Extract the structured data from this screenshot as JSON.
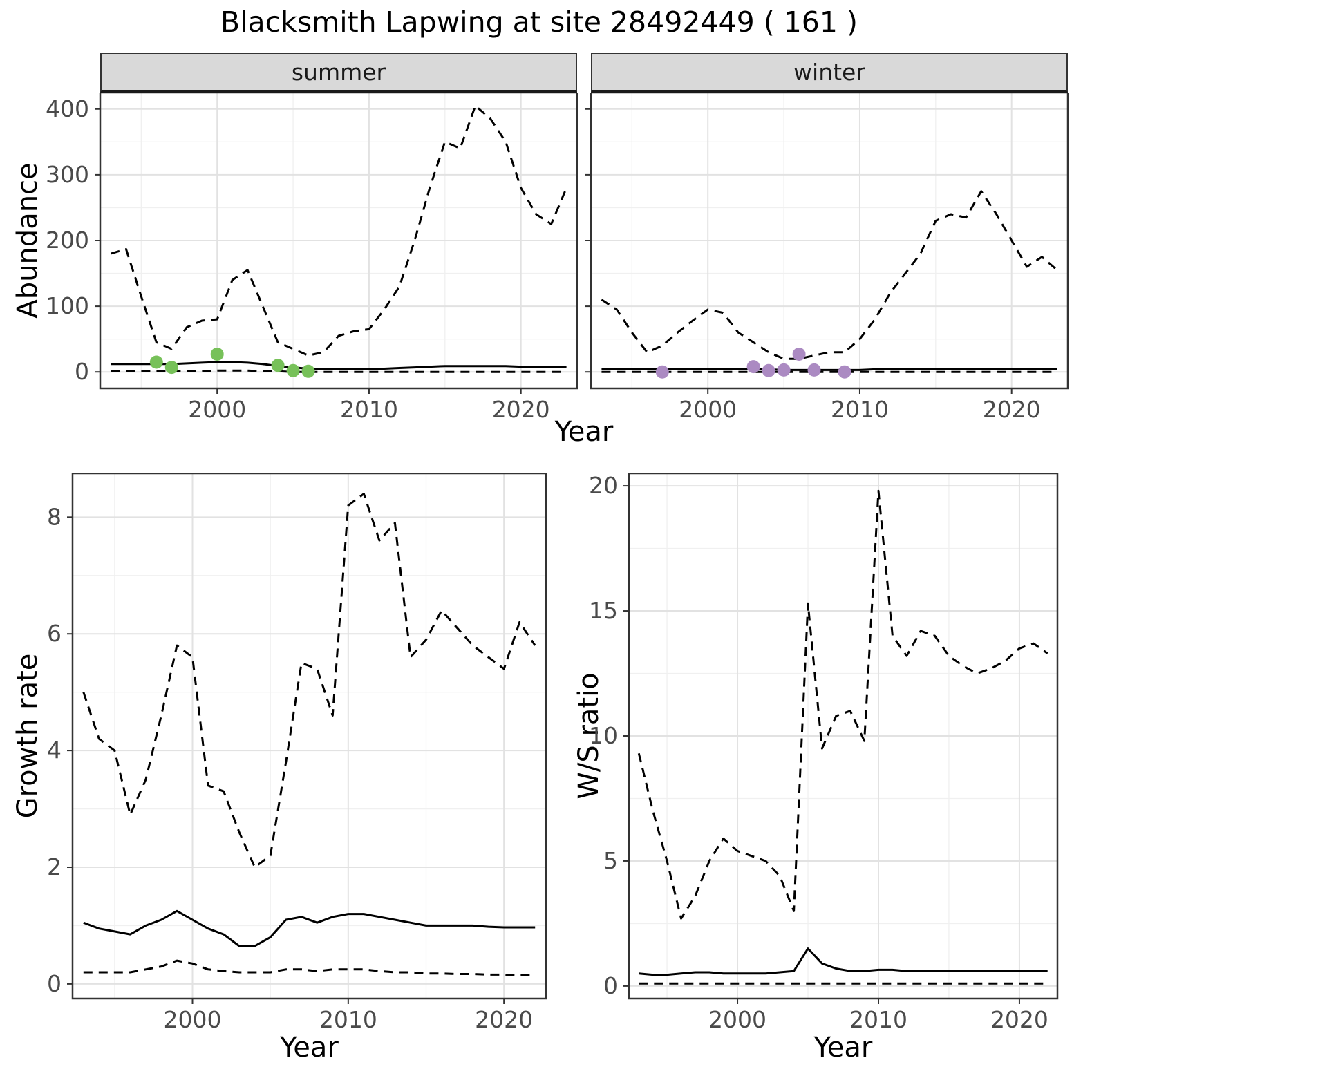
{
  "title": "Blacksmith Lapwing at site 28492449 ( 161 )",
  "top_row": {
    "ylabel": "Abundance",
    "xlabel": "Year",
    "facets": [
      "summer",
      "winter"
    ]
  },
  "bottom_left": {
    "ylabel": "Growth rate",
    "xlabel": "Year"
  },
  "bottom_right": {
    "ylabel": "W/S ratio",
    "xlabel": "Year"
  },
  "colors": {
    "summer_points": "#77c159",
    "winter_points": "#ab8ac2",
    "line": "#000000",
    "grid_major": "#e2e2e2",
    "grid_minor": "#f0f0f0",
    "panel_border": "#333333",
    "strip_bg": "#d9d9d9",
    "tick_text": "#4a4a4a",
    "tick_mark": "#333333"
  },
  "chart_data": [
    {
      "id": "abundance-summer",
      "type": "line",
      "facet": "summer",
      "xlabel": "Year",
      "ylabel": "Abundance",
      "xlim": [
        1992.3,
        2023.7
      ],
      "ylim": [
        -25,
        425
      ],
      "xticks": [
        2000,
        2010,
        2020
      ],
      "yticks": [
        0,
        100,
        200,
        300,
        400
      ],
      "grid": true,
      "legend": "none",
      "x": [
        1993,
        1994,
        1995,
        1996,
        1997,
        1998,
        1999,
        2000,
        2001,
        2002,
        2003,
        2004,
        2005,
        2006,
        2007,
        2008,
        2009,
        2010,
        2011,
        2012,
        2013,
        2014,
        2015,
        2016,
        2017,
        2018,
        2019,
        2020,
        2021,
        2022,
        2023
      ],
      "series": [
        {
          "name": "upper-ci",
          "linetype": "dashed",
          "values": [
            180,
            187,
            115,
            45,
            35,
            68,
            78,
            80,
            140,
            155,
            100,
            45,
            35,
            25,
            30,
            55,
            62,
            65,
            95,
            130,
            200,
            280,
            350,
            340,
            405,
            385,
            350,
            280,
            240,
            225,
            280
          ]
        },
        {
          "name": "median",
          "linetype": "solid",
          "values": [
            12,
            12,
            12,
            12,
            12,
            13,
            14,
            15,
            15,
            14,
            12,
            9,
            7,
            5,
            4,
            4,
            4,
            5,
            5,
            6,
            7,
            8,
            9,
            9,
            9,
            9,
            9,
            8,
            8,
            8,
            8
          ]
        },
        {
          "name": "lower-ci",
          "linetype": "dashed",
          "values": [
            1,
            1,
            1,
            1,
            1,
            1,
            1,
            2,
            2,
            2,
            1,
            1,
            0,
            0,
            0,
            0,
            0,
            0,
            0,
            0,
            0,
            0,
            0,
            0,
            0,
            0,
            0,
            0,
            0,
            0,
            0
          ]
        }
      ],
      "points": {
        "name": "summer-observations",
        "color": "#77c159",
        "x": [
          1996,
          1997,
          2000,
          2004,
          2005,
          2006
        ],
        "y": [
          15,
          7,
          27,
          10,
          2,
          1
        ]
      }
    },
    {
      "id": "abundance-winter",
      "type": "line",
      "facet": "winter",
      "xlabel": "Year",
      "ylabel": "Abundance",
      "xlim": [
        1992.3,
        2023.7
      ],
      "ylim": [
        -25,
        425
      ],
      "xticks": [
        2000,
        2010,
        2020
      ],
      "yticks": [
        0,
        100,
        200,
        300,
        400
      ],
      "grid": true,
      "legend": "none",
      "x": [
        1993,
        1994,
        1995,
        1996,
        1997,
        1998,
        1999,
        2000,
        2001,
        2002,
        2003,
        2004,
        2005,
        2006,
        2007,
        2008,
        2009,
        2010,
        2011,
        2012,
        2013,
        2014,
        2015,
        2016,
        2017,
        2018,
        2019,
        2020,
        2021,
        2022,
        2023
      ],
      "series": [
        {
          "name": "upper-ci",
          "linetype": "dashed",
          "values": [
            110,
            95,
            60,
            30,
            40,
            60,
            78,
            95,
            90,
            60,
            45,
            30,
            20,
            20,
            25,
            30,
            30,
            50,
            80,
            120,
            150,
            180,
            230,
            240,
            235,
            275,
            240,
            200,
            160,
            175,
            155
          ]
        },
        {
          "name": "median",
          "linetype": "solid",
          "values": [
            4,
            4,
            4,
            4,
            4,
            5,
            5,
            5,
            5,
            4,
            4,
            4,
            3,
            3,
            3,
            3,
            3,
            3,
            4,
            4,
            4,
            4,
            5,
            5,
            5,
            5,
            5,
            4,
            4,
            4,
            4
          ]
        },
        {
          "name": "lower-ci",
          "linetype": "dashed",
          "values": [
            0,
            0,
            0,
            0,
            0,
            0,
            0,
            0,
            0,
            0,
            0,
            0,
            0,
            0,
            0,
            0,
            0,
            0,
            0,
            0,
            0,
            0,
            0,
            0,
            0,
            0,
            0,
            0,
            0,
            0,
            0
          ]
        }
      ],
      "points": {
        "name": "winter-observations",
        "color": "#ab8ac2",
        "x": [
          1997,
          2003,
          2004,
          2005,
          2006,
          2007,
          2009
        ],
        "y": [
          0,
          8,
          2,
          3,
          27,
          3,
          0
        ]
      }
    },
    {
      "id": "growth-rate",
      "type": "line",
      "xlabel": "Year",
      "ylabel": "Growth rate",
      "xlim": [
        1992.3,
        2022.7
      ],
      "ylim": [
        -0.25,
        8.75
      ],
      "xticks": [
        2000,
        2010,
        2020
      ],
      "yticks": [
        0,
        2,
        4,
        6,
        8
      ],
      "grid": true,
      "legend": "none",
      "x": [
        1993,
        1994,
        1995,
        1996,
        1997,
        1998,
        1999,
        2000,
        2001,
        2002,
        2003,
        2004,
        2005,
        2006,
        2007,
        2008,
        2009,
        2010,
        2011,
        2012,
        2013,
        2014,
        2015,
        2016,
        2017,
        2018,
        2019,
        2020,
        2021,
        2022
      ],
      "series": [
        {
          "name": "upper-ci",
          "linetype": "dashed",
          "values": [
            5.0,
            4.2,
            4.0,
            2.9,
            3.5,
            4.6,
            5.8,
            5.6,
            3.4,
            3.3,
            2.6,
            2.0,
            2.2,
            3.8,
            5.5,
            5.4,
            4.6,
            8.2,
            8.4,
            7.6,
            7.9,
            5.6,
            5.9,
            6.4,
            6.1,
            5.8,
            5.6,
            5.4,
            6.2,
            5.8
          ]
        },
        {
          "name": "median",
          "linetype": "solid",
          "values": [
            1.05,
            0.95,
            0.9,
            0.85,
            1.0,
            1.1,
            1.25,
            1.1,
            0.95,
            0.85,
            0.65,
            0.65,
            0.8,
            1.1,
            1.15,
            1.05,
            1.15,
            1.2,
            1.2,
            1.15,
            1.1,
            1.05,
            1.0,
            1.0,
            1.0,
            1.0,
            0.98,
            0.97,
            0.97,
            0.97
          ]
        },
        {
          "name": "lower-ci",
          "linetype": "dashed",
          "values": [
            0.2,
            0.2,
            0.2,
            0.2,
            0.25,
            0.3,
            0.4,
            0.35,
            0.25,
            0.22,
            0.2,
            0.2,
            0.2,
            0.25,
            0.25,
            0.22,
            0.25,
            0.25,
            0.25,
            0.22,
            0.2,
            0.2,
            0.18,
            0.18,
            0.17,
            0.17,
            0.16,
            0.16,
            0.15,
            0.15
          ]
        }
      ]
    },
    {
      "id": "ws-ratio",
      "type": "line",
      "xlabel": "Year",
      "ylabel": "W/S ratio",
      "xlim": [
        1992.3,
        2022.7
      ],
      "ylim": [
        -0.5,
        20.5
      ],
      "xticks": [
        2000,
        2010,
        2020
      ],
      "yticks": [
        0,
        5,
        10,
        15,
        20
      ],
      "grid": true,
      "legend": "none",
      "x": [
        1993,
        1994,
        1995,
        1996,
        1997,
        1998,
        1999,
        2000,
        2001,
        2002,
        2003,
        2004,
        2005,
        2006,
        2007,
        2008,
        2009,
        2010,
        2011,
        2012,
        2013,
        2014,
        2015,
        2016,
        2017,
        2018,
        2019,
        2020,
        2021,
        2022
      ],
      "series": [
        {
          "name": "upper-ci",
          "linetype": "dashed",
          "values": [
            9.3,
            7.0,
            5.0,
            2.7,
            3.6,
            5.0,
            5.9,
            5.4,
            5.2,
            5.0,
            4.4,
            3.0,
            15.3,
            9.5,
            10.8,
            11.0,
            9.8,
            19.8,
            14.0,
            13.2,
            14.2,
            14.0,
            13.2,
            12.8,
            12.5,
            12.7,
            13.0,
            13.5,
            13.7,
            13.3
          ]
        },
        {
          "name": "median",
          "linetype": "solid",
          "values": [
            0.5,
            0.45,
            0.45,
            0.5,
            0.55,
            0.55,
            0.5,
            0.5,
            0.5,
            0.5,
            0.55,
            0.6,
            1.5,
            0.9,
            0.7,
            0.6,
            0.6,
            0.65,
            0.65,
            0.6,
            0.6,
            0.6,
            0.6,
            0.6,
            0.6,
            0.6,
            0.6,
            0.6,
            0.6,
            0.6
          ]
        },
        {
          "name": "lower-ci",
          "linetype": "dashed",
          "values": [
            0.1,
            0.1,
            0.1,
            0.1,
            0.1,
            0.1,
            0.1,
            0.1,
            0.1,
            0.1,
            0.1,
            0.1,
            0.1,
            0.1,
            0.1,
            0.1,
            0.1,
            0.1,
            0.1,
            0.1,
            0.1,
            0.1,
            0.1,
            0.1,
            0.1,
            0.1,
            0.1,
            0.1,
            0.1,
            0.1
          ]
        }
      ]
    }
  ]
}
